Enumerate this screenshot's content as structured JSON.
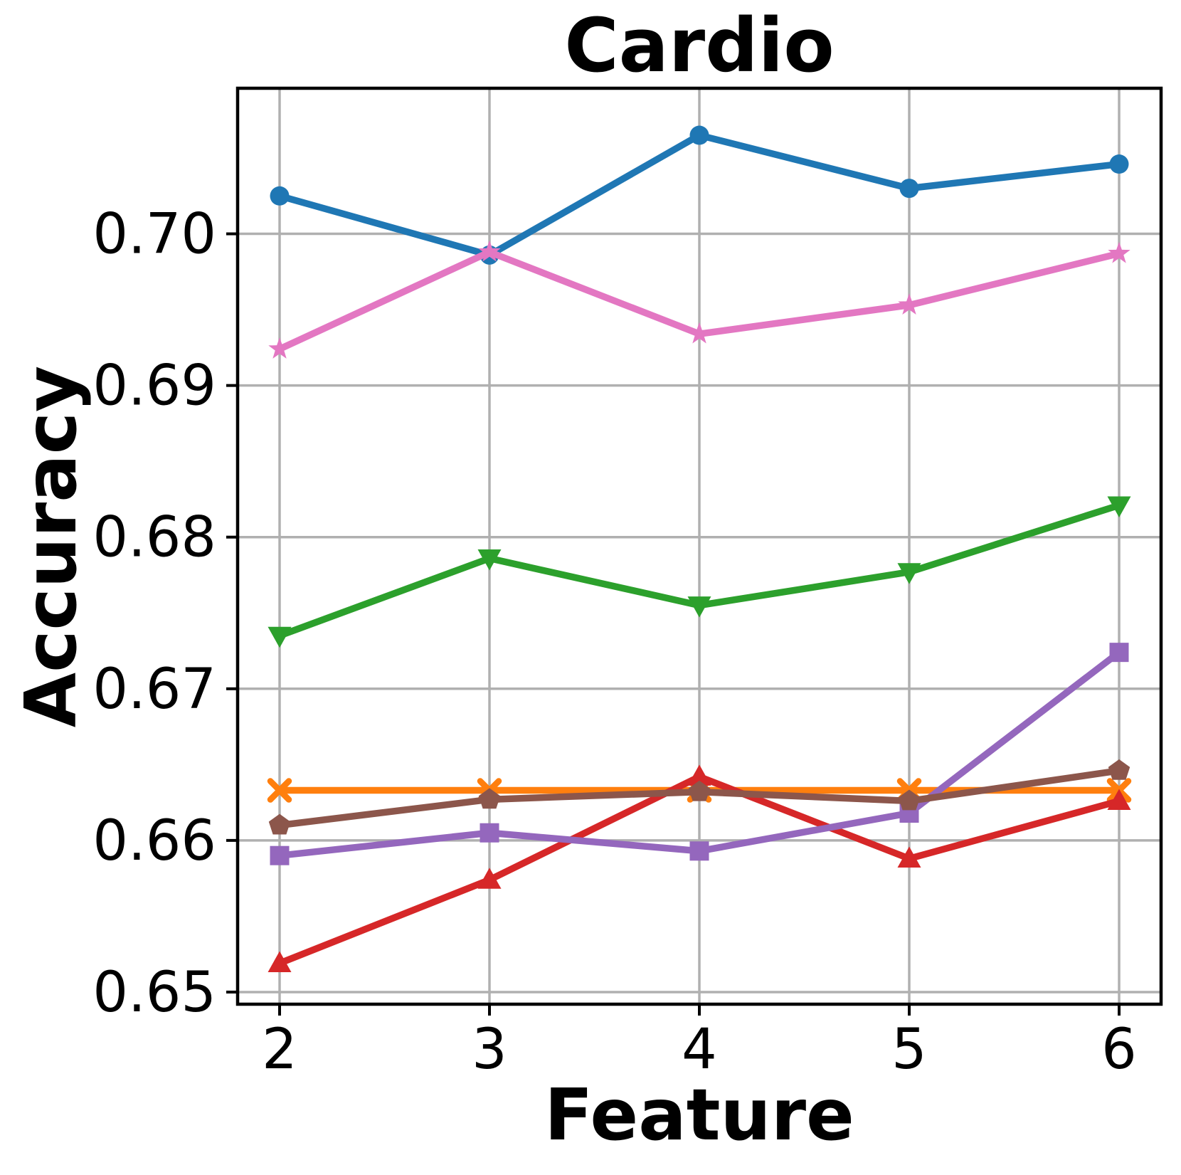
{
  "chart_data": {
    "type": "line",
    "title": "Cardio",
    "xlabel": "Feature",
    "ylabel": "Accuracy",
    "x": [
      2,
      3,
      4,
      5,
      6
    ],
    "xlim": [
      1.8,
      6.2
    ],
    "ylim": [
      0.6492,
      0.7096
    ],
    "grid": true,
    "legend_position": "none",
    "background_color": "#ffffff",
    "grid_color": "#b0b0b0",
    "axis_color": "#000000",
    "xticks": [
      {
        "value": 2,
        "label": "2"
      },
      {
        "value": 3,
        "label": "3"
      },
      {
        "value": 4,
        "label": "4"
      },
      {
        "value": 5,
        "label": "5"
      },
      {
        "value": 6,
        "label": "6"
      }
    ],
    "yticks": [
      {
        "value": 0.65,
        "label": "0.65"
      },
      {
        "value": 0.66,
        "label": "0.66"
      },
      {
        "value": 0.67,
        "label": "0.67"
      },
      {
        "value": 0.68,
        "label": "0.68"
      },
      {
        "value": 0.69,
        "label": "0.69"
      },
      {
        "value": 0.7,
        "label": "0.70"
      }
    ],
    "series": [
      {
        "marker": "circle",
        "color": "#1f77b4",
        "values": [
          0.7025,
          0.6986,
          0.7065,
          0.703,
          0.7046
        ]
      },
      {
        "marker": "x",
        "color": "#ff7f0e",
        "values": [
          0.6633,
          0.6633,
          0.6633,
          0.6633,
          0.6633
        ]
      },
      {
        "marker": "triangle-down",
        "color": "#2ca02c",
        "values": [
          0.6735,
          0.6786,
          0.6755,
          0.6777,
          0.6821
        ]
      },
      {
        "marker": "triangle-up",
        "color": "#d62728",
        "values": [
          0.6519,
          0.6574,
          0.6642,
          0.6588,
          0.6626
        ]
      },
      {
        "marker": "square",
        "color": "#9467bd",
        "values": [
          0.659,
          0.6605,
          0.6593,
          0.6618,
          0.6724
        ]
      },
      {
        "marker": "pentagon",
        "color": "#8c564b",
        "values": [
          0.661,
          0.6627,
          0.6632,
          0.6626,
          0.6646
        ]
      },
      {
        "marker": "star",
        "color": "#e377c2",
        "values": [
          0.6924,
          0.6988,
          0.6934,
          0.6953,
          0.6987
        ]
      }
    ]
  }
}
